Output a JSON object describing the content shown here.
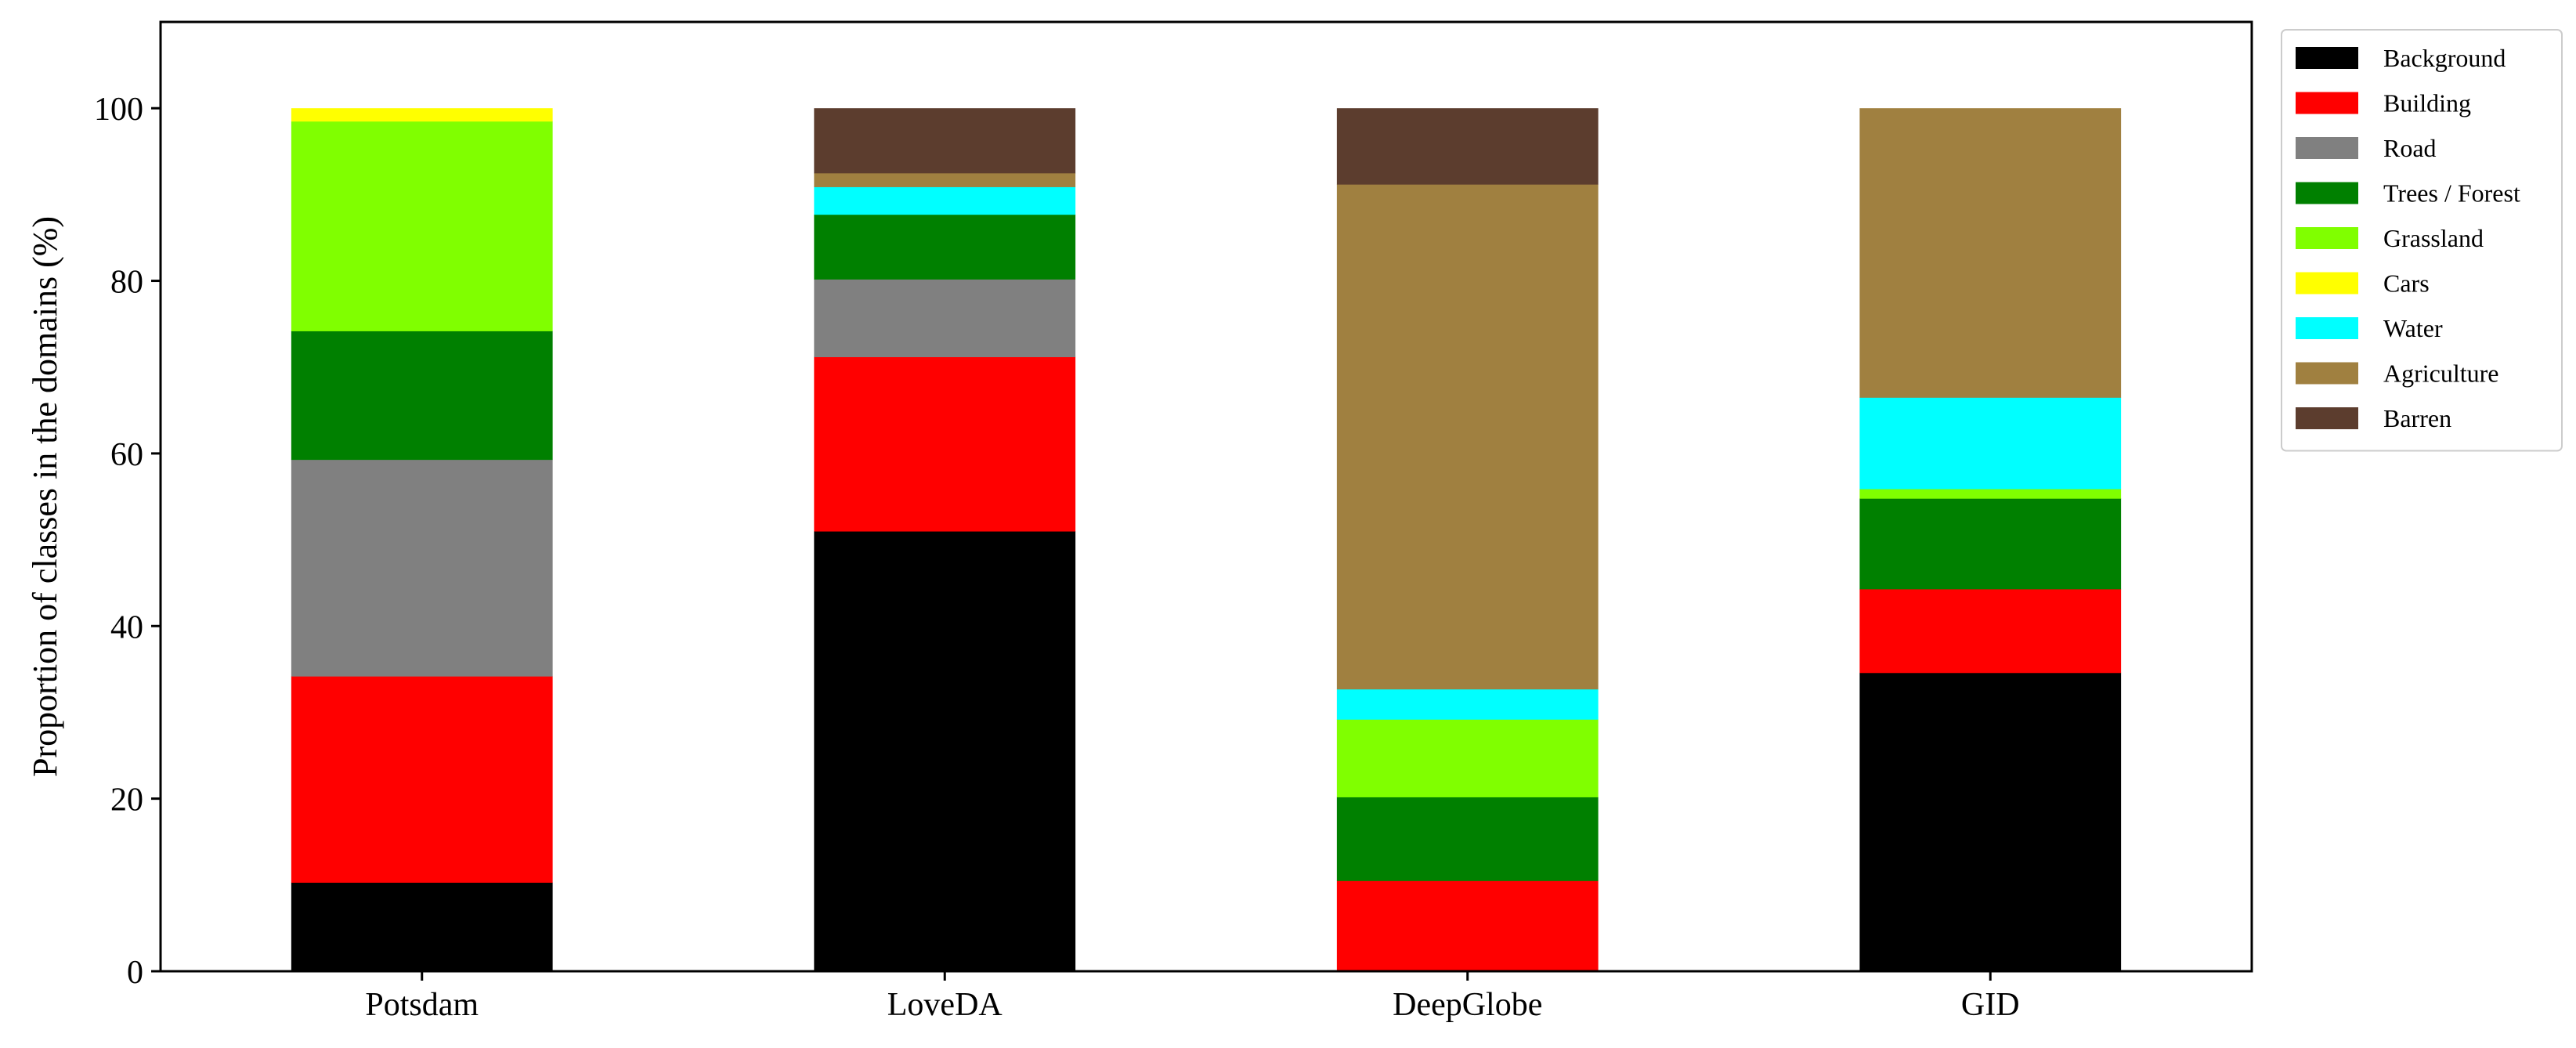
{
  "chart_data": {
    "type": "bar",
    "stacked": true,
    "title": "",
    "xlabel": "",
    "ylabel": "Proportion of classes in the domains (%)",
    "ylim": [
      0,
      110
    ],
    "yticks": [
      0,
      20,
      40,
      60,
      80,
      100
    ],
    "grid": false,
    "legend_position": "outside-top-right",
    "categories": [
      "Potsdam",
      "LoveDA",
      "DeepGlobe",
      "GID"
    ],
    "series": [
      {
        "name": "Background",
        "color": "#000000",
        "values": [
          10.3,
          51.0,
          0.0,
          34.6
        ]
      },
      {
        "name": "Building",
        "color": "#ff0000",
        "values": [
          23.9,
          20.2,
          10.5,
          9.7
        ]
      },
      {
        "name": "Road",
        "color": "#808080",
        "values": [
          25.1,
          9.0,
          0.0,
          0.0
        ]
      },
      {
        "name": "Trees / Forest",
        "color": "#008000",
        "values": [
          14.9,
          7.5,
          9.7,
          10.5
        ]
      },
      {
        "name": "Grassland",
        "color": "#80ff00",
        "values": [
          24.3,
          0.0,
          9.0,
          1.1
        ]
      },
      {
        "name": "Cars",
        "color": "#ffff00",
        "values": [
          1.5,
          0.0,
          0.0,
          0.0
        ]
      },
      {
        "name": "Water",
        "color": "#00ffff",
        "values": [
          0.0,
          3.2,
          3.5,
          10.6
        ]
      },
      {
        "name": "Agriculture",
        "color": "#a08040",
        "values": [
          0.0,
          1.6,
          58.5,
          33.5
        ]
      },
      {
        "name": "Barren",
        "color": "#5c3d2e",
        "values": [
          0.0,
          7.5,
          8.8,
          0.0
        ]
      }
    ]
  }
}
